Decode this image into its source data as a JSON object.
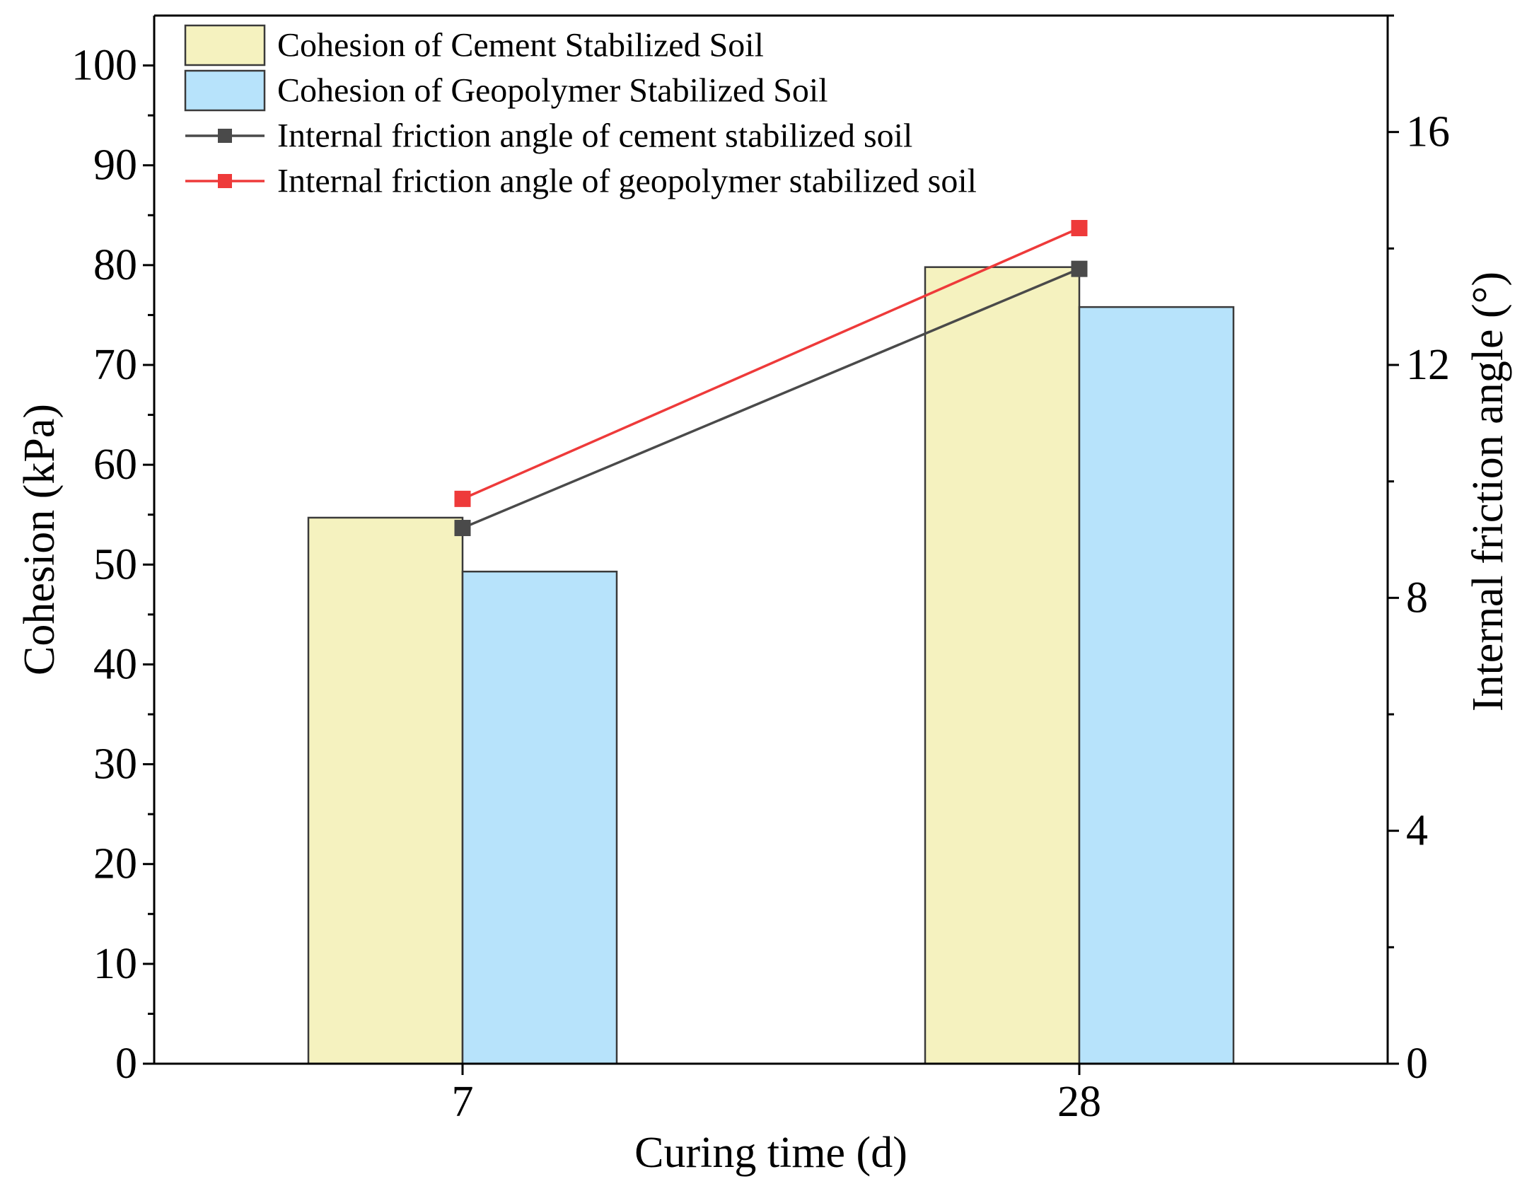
{
  "chart_data": {
    "type": "bar",
    "xlabel": "Curing time (d)",
    "ylabel": "Cohesion (kPa)",
    "y2label": "Internal friction angle (°)",
    "ylim": [
      0,
      105
    ],
    "y2lim": [
      0,
      18
    ],
    "yticks": [
      0,
      10,
      20,
      30,
      40,
      50,
      60,
      70,
      80,
      90,
      100
    ],
    "y2ticks": [
      0,
      4,
      8,
      12,
      16
    ],
    "categories": [
      "7",
      "28"
    ],
    "bar_series": [
      {
        "name": "Cohesion of Cement Stabilized Soil",
        "values": [
          54.7,
          79.8
        ],
        "color": "#f5f2bf"
      },
      {
        "name": "Cohesion of Geopolymer Stabilized Soil",
        "values": [
          49.3,
          75.8
        ],
        "color": "#b7e3fb"
      }
    ],
    "line_series": [
      {
        "name": "Internal friction angle of cement stabilized soil",
        "values": [
          9.2,
          13.65
        ],
        "color": "#4a4a4a"
      },
      {
        "name": "Internal friction angle of geopolymer stabilized soil",
        "values": [
          9.7,
          14.35
        ],
        "color": "#ee3a3a"
      }
    ],
    "legend_position": "top-left"
  }
}
